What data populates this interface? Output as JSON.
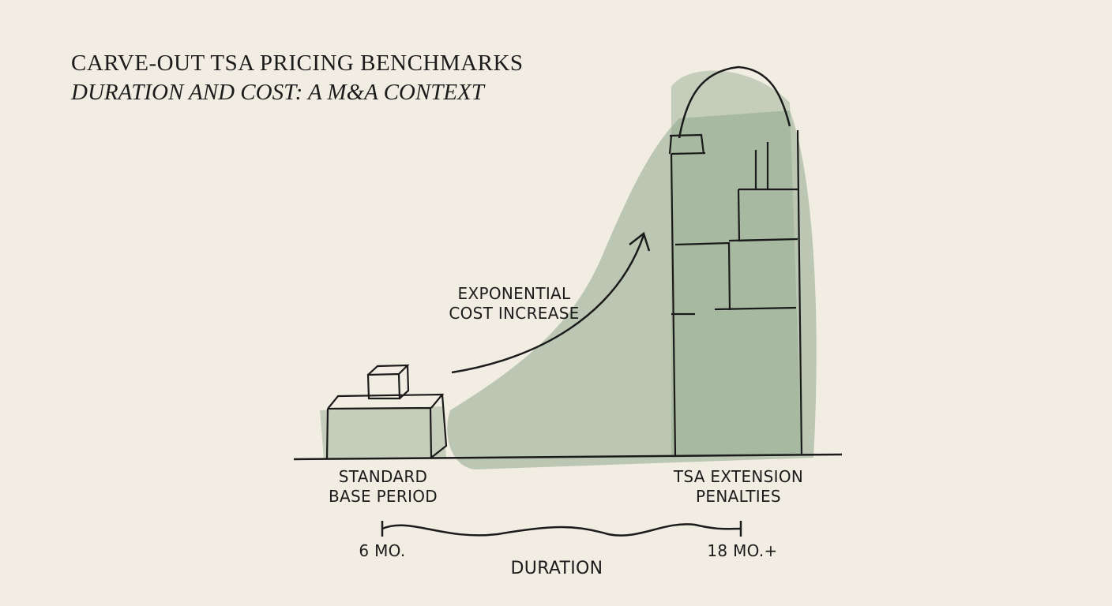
{
  "header": {
    "title": "CARVE-OUT TSA PRICING BENCHMARKS",
    "subtitle": "DURATION AND COST: A M&A CONTEXT"
  },
  "diagram": {
    "left_label_line1": "STANDARD",
    "left_label_line2": "BASE PERIOD",
    "right_label_line1": "TSA EXTENSION",
    "right_label_line2": "PENALTIES",
    "arrow_label_line1": "EXPONENTIAL",
    "arrow_label_line2": "COST INCREASE",
    "axis_start": "6 MO.",
    "axis_end": "18 MO.+",
    "axis_label": "DURATION"
  },
  "colors": {
    "paper": "#f1ede2",
    "wash": "#8fa88c",
    "ink": "#1b1b1b"
  }
}
